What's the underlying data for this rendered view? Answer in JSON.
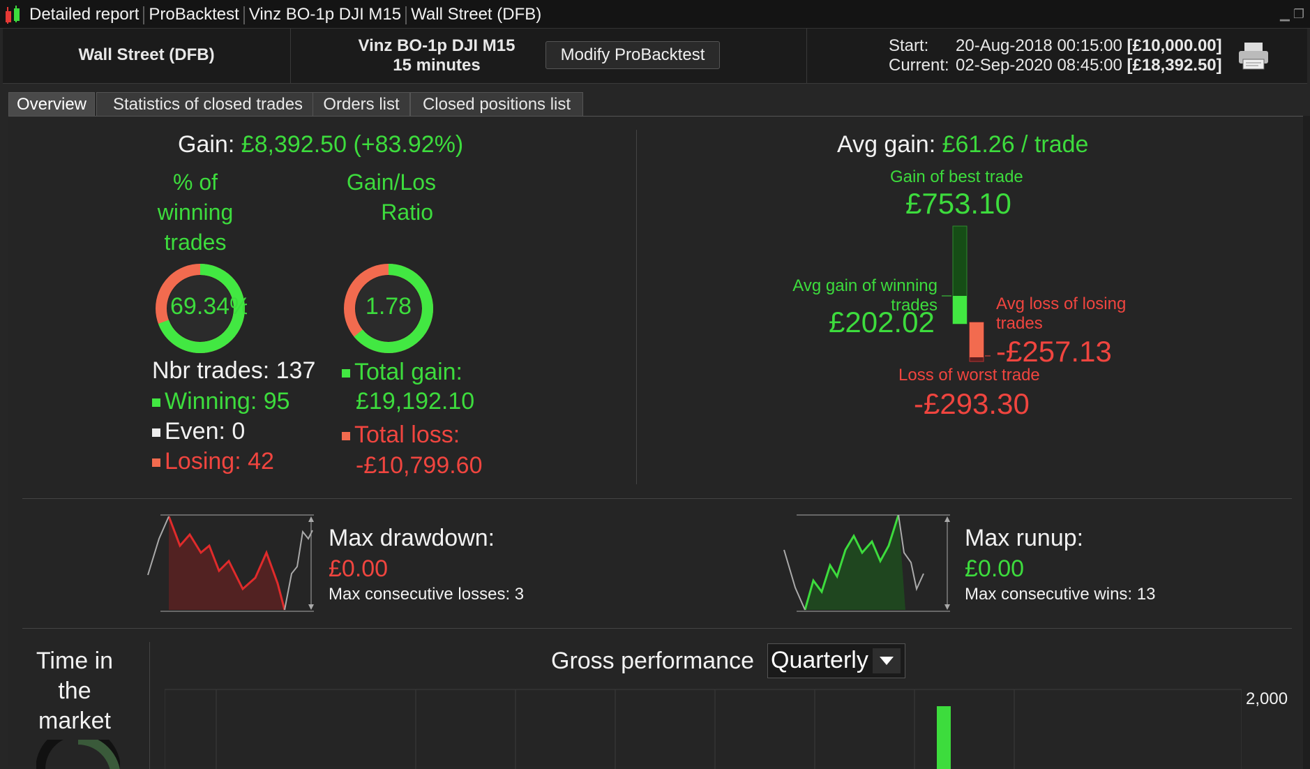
{
  "window": {
    "title_parts": [
      "Detailed report",
      "ProBacktest",
      "Vinz BO-1p DJI M15",
      "Wall Street (DFB)"
    ]
  },
  "header": {
    "instrument": "Wall Street (DFB)",
    "strategy_name": "Vinz BO-1p DJI M15",
    "timeframe": "15 minutes",
    "modify_button": "Modify ProBacktest",
    "start_label": "Start:",
    "start_date": "20-Aug-2018 00:15:00",
    "start_capital": "[£10,000.00]",
    "current_label": "Current:",
    "current_date": "02-Sep-2020 08:45:00",
    "current_capital": "[£18,392.50]"
  },
  "tabs": [
    {
      "label": "Overview",
      "active": true
    },
    {
      "label": "Statistics of closed trades",
      "active": false
    },
    {
      "label": "Orders list",
      "active": false
    },
    {
      "label": "Closed positions list",
      "active": false
    }
  ],
  "overview": {
    "gain_label": "Gain:",
    "gain_value": "£8,392.50",
    "gain_pct": "(+83.92%)",
    "winning_pct_title": [
      "% of",
      "winning",
      "trades"
    ],
    "winning_pct_value": "69.34%",
    "winning_fraction": 0.6934,
    "ratio_title": [
      "Gain/Los",
      "Ratio"
    ],
    "ratio_value": "1.78",
    "ratio_fraction": 0.64,
    "nbr_trades": "Nbr trades: 137",
    "winning": "Winning: 95",
    "even": "Even: 0",
    "losing": "Losing: 42",
    "total_gain_label": "Total gain:",
    "total_gain_value": "£19,192.10",
    "total_loss_label": "Total loss:",
    "total_loss_value": "-£10,799.60",
    "avg_gain_label": "Avg gain:",
    "avg_gain_value": "£61.26 / trade",
    "best_trade_label": "Gain of best trade",
    "best_trade_value": "£753.10",
    "avg_win_label": [
      "Avg gain of winning",
      "trades"
    ],
    "avg_win_value": "£202.02",
    "avg_loss_label": [
      "Avg loss of losing",
      "trades"
    ],
    "avg_loss_value": "-£257.13",
    "worst_trade_label": "Loss of worst trade",
    "worst_trade_value": "-£293.30",
    "max_drawdown_label": "Max drawdown:",
    "max_drawdown_value": "£0.00",
    "max_consec_losses": "Max consecutive losses: 3",
    "max_runup_label": "Max runup:",
    "max_runup_value": "£0.00",
    "max_consec_wins": "Max consecutive wins: 13",
    "time_in_market_label": [
      "Time in",
      "the",
      "market"
    ],
    "gross_perf_label": "Gross performance",
    "period_select": "Quarterly"
  },
  "chart_data": {
    "type": "bar",
    "title": "Gross performance",
    "y_tick_labels": [
      "2,000"
    ],
    "values_visible": "partial (top edge of chart only)"
  },
  "colors": {
    "green": "#3ddc3d",
    "red": "#f0453f",
    "background": "#262626"
  }
}
